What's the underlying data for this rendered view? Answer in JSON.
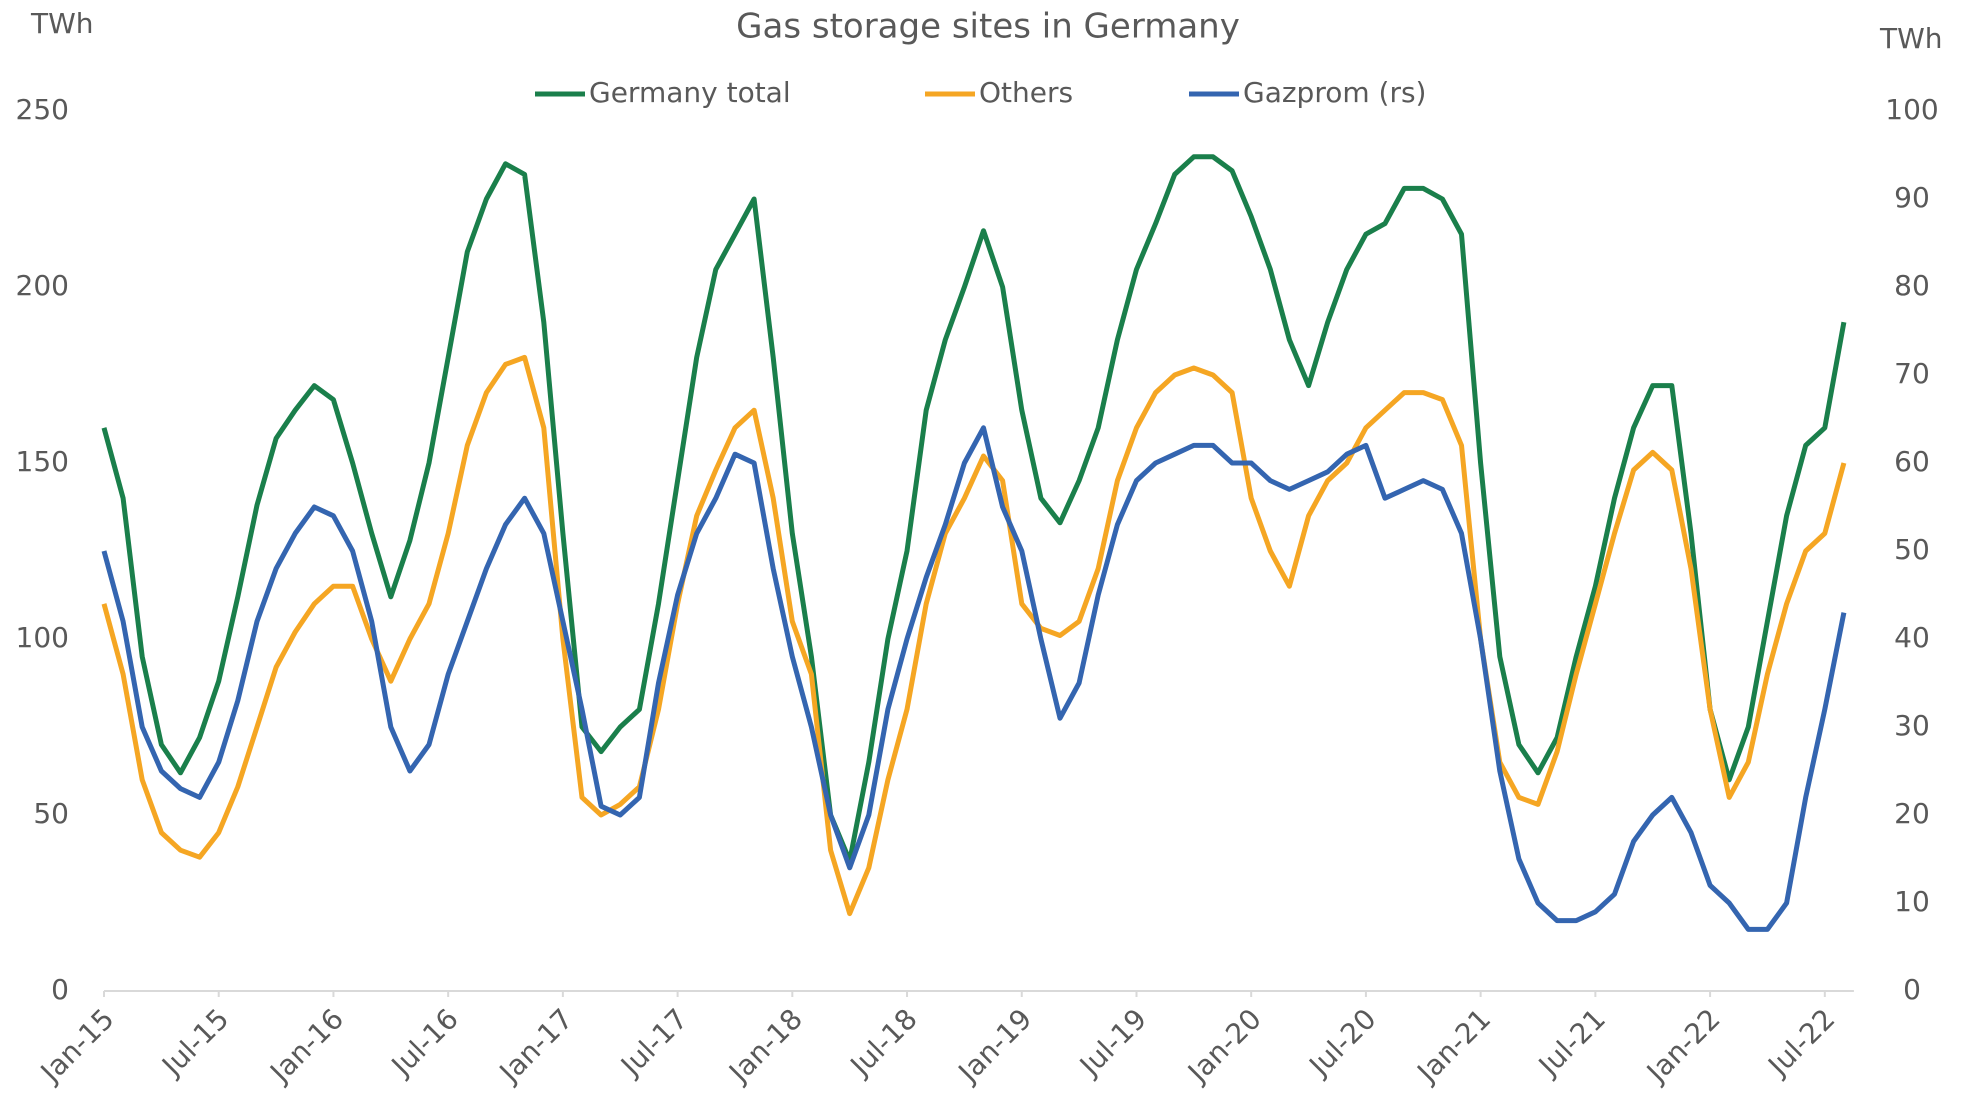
{
  "chart_data": {
    "type": "line",
    "title": "Gas storage sites in Germany",
    "y_label": "TWh",
    "y2_label": "TWh",
    "x": [
      "2015-01",
      "2015-02",
      "2015-03",
      "2015-04",
      "2015-05",
      "2015-06",
      "2015-07",
      "2015-08",
      "2015-09",
      "2015-10",
      "2015-11",
      "2015-12",
      "2016-01",
      "2016-02",
      "2016-03",
      "2016-04",
      "2016-05",
      "2016-06",
      "2016-07",
      "2016-08",
      "2016-09",
      "2016-10",
      "2016-11",
      "2016-12",
      "2017-01",
      "2017-02",
      "2017-03",
      "2017-04",
      "2017-05",
      "2017-06",
      "2017-07",
      "2017-08",
      "2017-09",
      "2017-10",
      "2017-11",
      "2017-12",
      "2018-01",
      "2018-02",
      "2018-03",
      "2018-04",
      "2018-05",
      "2018-06",
      "2018-07",
      "2018-08",
      "2018-09",
      "2018-10",
      "2018-11",
      "2018-12",
      "2019-01",
      "2019-02",
      "2019-03",
      "2019-04",
      "2019-05",
      "2019-06",
      "2019-07",
      "2019-08",
      "2019-09",
      "2019-10",
      "2019-11",
      "2019-12",
      "2020-01",
      "2020-02",
      "2020-03",
      "2020-04",
      "2020-05",
      "2020-06",
      "2020-07",
      "2020-08",
      "2020-09",
      "2020-10",
      "2020-11",
      "2020-12",
      "2021-01",
      "2021-02",
      "2021-03",
      "2021-04",
      "2021-05",
      "2021-06",
      "2021-07",
      "2021-08",
      "2021-09",
      "2021-10",
      "2021-11",
      "2021-12",
      "2022-01",
      "2022-02",
      "2022-03",
      "2022-04",
      "2022-05",
      "2022-06",
      "2022-07",
      "2022-08"
    ],
    "series": [
      {
        "name": "Germany total",
        "color": "#1a7f4b",
        "values": [
          160,
          140,
          95,
          70,
          62,
          72,
          88,
          112,
          138,
          157,
          165,
          172,
          168,
          150,
          130,
          112,
          128,
          150,
          180,
          210,
          225,
          235,
          232,
          190,
          130,
          75,
          68,
          75,
          80,
          110,
          145,
          180,
          205,
          215,
          225,
          180,
          130,
          95,
          50,
          37,
          65,
          100,
          125,
          165,
          185,
          200,
          216,
          200,
          165,
          140,
          133,
          145,
          160,
          185,
          205,
          218,
          232,
          237,
          237,
          233,
          220,
          205,
          185,
          172,
          190,
          205,
          215,
          218,
          228,
          228,
          225,
          215,
          150,
          95,
          70,
          62,
          72,
          95,
          115,
          140,
          160,
          172,
          172,
          130,
          80,
          60,
          75,
          105,
          135,
          155,
          160,
          190
        ]
      },
      {
        "name": "Others",
        "color": "#f5a623",
        "values": [
          110,
          90,
          60,
          45,
          40,
          38,
          45,
          58,
          75,
          92,
          102,
          110,
          115,
          115,
          100,
          88,
          100,
          110,
          130,
          155,
          170,
          178,
          180,
          160,
          100,
          55,
          50,
          53,
          58,
          80,
          110,
          135,
          148,
          160,
          165,
          140,
          105,
          90,
          40,
          22,
          35,
          60,
          80,
          110,
          130,
          140,
          152,
          145,
          110,
          103,
          101,
          105,
          120,
          145,
          160,
          170,
          175,
          177,
          175,
          170,
          140,
          125,
          115,
          135,
          145,
          150,
          160,
          165,
          170,
          170,
          168,
          155,
          100,
          65,
          55,
          53,
          68,
          90,
          110,
          130,
          148,
          153,
          148,
          120,
          80,
          55,
          65,
          90,
          110,
          125,
          130,
          150
        ]
      },
      {
        "name": "Gazprom (rs)",
        "color": "#3465b0",
        "axis": "y2",
        "values": [
          50,
          42,
          30,
          25,
          23,
          22,
          26,
          33,
          42,
          48,
          52,
          55,
          54,
          50,
          42,
          30,
          25,
          28,
          36,
          42,
          48,
          53,
          56,
          52,
          42,
          32,
          21,
          20,
          22,
          35,
          45,
          52,
          56,
          61,
          60,
          48,
          38,
          30,
          20,
          14,
          20,
          32,
          40,
          47,
          53,
          60,
          64,
          55,
          50,
          40,
          31,
          35,
          45,
          53,
          58,
          60,
          61,
          62,
          62,
          60,
          60,
          58,
          57,
          58,
          59,
          61,
          62,
          56,
          57,
          58,
          57,
          52,
          40,
          25,
          15,
          10,
          8,
          8,
          9,
          11,
          17,
          20,
          22,
          18,
          12,
          10,
          7,
          7,
          10,
          22,
          32,
          43
        ]
      }
    ],
    "xticks": [
      {
        "value": "2015-01",
        "label": "Jan-15"
      },
      {
        "value": "2015-07",
        "label": "Jul-15"
      },
      {
        "value": "2016-01",
        "label": "Jan-16"
      },
      {
        "value": "2016-07",
        "label": "Jul-16"
      },
      {
        "value": "2017-01",
        "label": "Jan-17"
      },
      {
        "value": "2017-07",
        "label": "Jul-17"
      },
      {
        "value": "2018-01",
        "label": "Jan-18"
      },
      {
        "value": "2018-07",
        "label": "Jul-18"
      },
      {
        "value": "2019-01",
        "label": "Jan-19"
      },
      {
        "value": "2019-07",
        "label": "Jul-19"
      },
      {
        "value": "2020-01",
        "label": "Jan-20"
      },
      {
        "value": "2020-07",
        "label": "Jul-20"
      },
      {
        "value": "2021-01",
        "label": "Jan-21"
      },
      {
        "value": "2021-07",
        "label": "Jul-21"
      },
      {
        "value": "2022-01",
        "label": "Jan-22"
      },
      {
        "value": "2022-07",
        "label": "Jul-22"
      }
    ],
    "ylim": [
      0,
      250
    ],
    "yticks": [
      0,
      50,
      100,
      150,
      200,
      250
    ],
    "y2lim": [
      0,
      100
    ],
    "y2ticks": [
      0,
      10,
      20,
      30,
      40,
      50,
      60,
      70,
      80,
      90,
      100
    ],
    "grid": false,
    "legend": "top"
  }
}
